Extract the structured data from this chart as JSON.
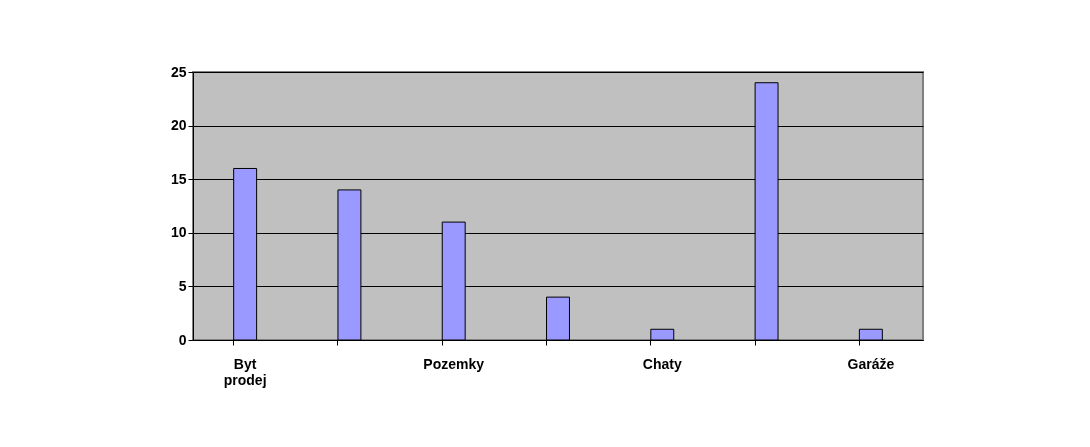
{
  "chart_data": {
    "type": "bar",
    "categories": [
      "Byt prodej",
      null,
      "Pozemky",
      null,
      "Chaty",
      null,
      "Garáže"
    ],
    "values": [
      16,
      14,
      11,
      4,
      1,
      24,
      1
    ],
    "color": "#9999ff",
    "ylim": [
      0,
      25
    ],
    "yticks": [
      0,
      5,
      10,
      15,
      20,
      25
    ],
    "grid": "y"
  }
}
